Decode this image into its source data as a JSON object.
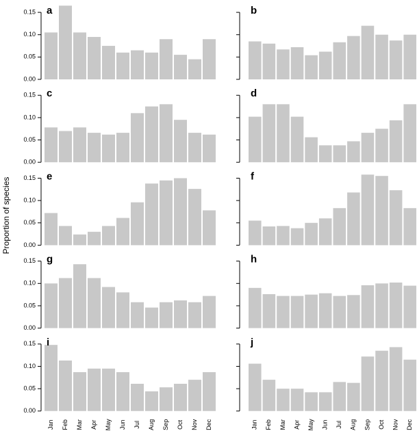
{
  "ylabel": "Proportion of species",
  "chart_data": [
    {
      "type": "bar",
      "title": "a",
      "values": [
        0.105,
        0.165,
        0.105,
        0.095,
        0.075,
        0.06,
        0.065,
        0.06,
        0.09,
        0.055,
        0.045,
        0.09
      ],
      "color": "#c8c8c8",
      "ylim": [
        0,
        0.17
      ],
      "yticks": [
        {
          "value": 0,
          "label": "0.00"
        },
        {
          "value": 0.05,
          "label": "0.05"
        },
        {
          "value": 0.1,
          "label": "0.10"
        },
        {
          "value": 0.15,
          "label": "0.15"
        }
      ]
    },
    {
      "type": "bar",
      "title": "b",
      "values": [
        0.085,
        0.08,
        0.067,
        0.072,
        0.054,
        0.062,
        0.083,
        0.097,
        0.12,
        0.1,
        0.087,
        0.1
      ],
      "color": "#c8c8c8",
      "ylim": [
        0,
        0.17
      ],
      "yticks": [
        0,
        0.05,
        0.1,
        0.15
      ]
    },
    {
      "type": "bar",
      "title": "c",
      "values": [
        0.078,
        0.07,
        0.078,
        0.066,
        0.062,
        0.066,
        0.11,
        0.125,
        0.13,
        0.095,
        0.066,
        0.062
      ],
      "color": "#c8c8c8",
      "ylim": [
        0,
        0.17
      ],
      "yticks": [
        {
          "value": 0,
          "label": "0.00"
        },
        {
          "value": 0.05,
          "label": "0.05"
        },
        {
          "value": 0.1,
          "label": "0.10"
        },
        {
          "value": 0.15,
          "label": "0.15"
        }
      ]
    },
    {
      "type": "bar",
      "title": "d",
      "values": [
        0.102,
        0.13,
        0.13,
        0.102,
        0.056,
        0.038,
        0.038,
        0.047,
        0.066,
        0.075,
        0.094,
        0.13
      ],
      "color": "#c8c8c8",
      "ylim": [
        0,
        0.17
      ],
      "yticks": [
        0,
        0.05,
        0.1,
        0.15
      ]
    },
    {
      "type": "bar",
      "title": "e",
      "values": [
        0.072,
        0.043,
        0.024,
        0.03,
        0.043,
        0.061,
        0.096,
        0.138,
        0.145,
        0.15,
        0.126,
        0.078
      ],
      "color": "#c8c8c8",
      "ylim": [
        0,
        0.17
      ],
      "yticks": [
        {
          "value": 0,
          "label": "0.00"
        },
        {
          "value": 0.05,
          "label": "0.05"
        },
        {
          "value": 0.1,
          "label": "0.10"
        },
        {
          "value": 0.15,
          "label": "0.15"
        }
      ]
    },
    {
      "type": "bar",
      "title": "f",
      "values": [
        0.055,
        0.042,
        0.043,
        0.038,
        0.05,
        0.06,
        0.083,
        0.118,
        0.158,
        0.155,
        0.123,
        0.083
      ],
      "color": "#c8c8c8",
      "ylim": [
        0,
        0.17
      ],
      "yticks": [
        0,
        0.05,
        0.1,
        0.15
      ]
    },
    {
      "type": "bar",
      "title": "g",
      "values": [
        0.1,
        0.112,
        0.143,
        0.112,
        0.092,
        0.08,
        0.058,
        0.046,
        0.058,
        0.062,
        0.058,
        0.072
      ],
      "color": "#c8c8c8",
      "ylim": [
        0,
        0.17
      ],
      "yticks": [
        {
          "value": 0,
          "label": "0.00"
        },
        {
          "value": 0.05,
          "label": "0.05"
        },
        {
          "value": 0.1,
          "label": "0.10"
        },
        {
          "value": 0.15,
          "label": "0.15"
        }
      ]
    },
    {
      "type": "bar",
      "title": "h",
      "values": [
        0.09,
        0.076,
        0.072,
        0.072,
        0.075,
        0.078,
        0.072,
        0.074,
        0.096,
        0.1,
        0.102,
        0.095
      ],
      "color": "#c8c8c8",
      "ylim": [
        0,
        0.17
      ],
      "yticks": [
        0,
        0.05,
        0.1,
        0.15
      ]
    },
    {
      "type": "bar",
      "title": "i",
      "categories": [
        "Jan",
        "Feb",
        "Mar",
        "Apr",
        "May",
        "Jun",
        "Jul",
        "Aug",
        "Sep",
        "Oct",
        "Nov",
        "Dec"
      ],
      "values": [
        0.148,
        0.113,
        0.087,
        0.095,
        0.095,
        0.087,
        0.061,
        0.044,
        0.053,
        0.061,
        0.07,
        0.087
      ],
      "color": "#c8c8c8",
      "ylim": [
        0,
        0.17
      ],
      "yticks": [
        {
          "value": 0,
          "label": "0.00"
        },
        {
          "value": 0.05,
          "label": "0.05"
        },
        {
          "value": 0.1,
          "label": "0.10"
        },
        {
          "value": 0.15,
          "label": "0.15"
        }
      ]
    },
    {
      "type": "bar",
      "title": "j",
      "categories": [
        "Jan",
        "Feb",
        "Mar",
        "Apr",
        "May",
        "Jun",
        "Jul",
        "Aug",
        "Sep",
        "Oct",
        "Nov",
        "Dec"
      ],
      "values": [
        0.106,
        0.07,
        0.05,
        0.05,
        0.042,
        0.042,
        0.065,
        0.063,
        0.122,
        0.135,
        0.143,
        0.115
      ],
      "color": "#c8c8c8",
      "ylim": [
        0,
        0.17
      ],
      "yticks": [
        0,
        0.05,
        0.1,
        0.15
      ]
    }
  ]
}
